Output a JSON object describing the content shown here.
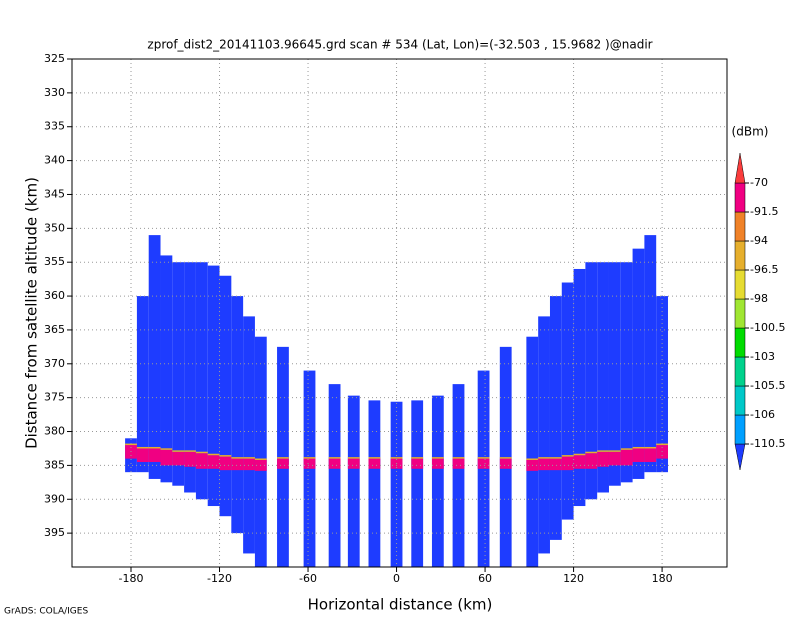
{
  "chart_data": {
    "type": "swath",
    "title": "zprof_dist2_20141103.96645.grd  scan # 534  (Lat, Lon)=(-32.503 , 15.9682 )@nadir",
    "x_label": "Horizontal distance (km)",
    "y_label": "Distance from satellite altitude (km)",
    "credit": "GrADS: COLA/IGES",
    "xlim": [
      -220,
      224
    ],
    "xticks": [
      -180,
      -120,
      -60,
      0,
      60,
      120,
      180
    ],
    "ylim": [
      325,
      400
    ],
    "y_inverted": true,
    "yticks": [
      325,
      330,
      335,
      340,
      345,
      350,
      355,
      360,
      365,
      370,
      375,
      380,
      385,
      390,
      395
    ],
    "grid": true,
    "echo_dbm": -115,
    "surface_dbm": -80,
    "stripes": {
      "x0": [
        -184,
        -176,
        -168,
        -160,
        -152,
        -144,
        -136,
        -128,
        -120,
        -112,
        -104,
        -96,
        -81,
        -63,
        -46,
        -33,
        -19,
        -4,
        10,
        24,
        38,
        55,
        70,
        88,
        96,
        104,
        112,
        120,
        128,
        136,
        144,
        152,
        160,
        168,
        176
      ],
      "x1": [
        -176,
        -168,
        -160,
        -152,
        -144,
        -136,
        -128,
        -120,
        -112,
        -104,
        -96,
        -88,
        -73,
        -55,
        -38,
        -25,
        -11,
        4,
        18,
        32,
        46,
        63,
        78,
        96,
        104,
        112,
        120,
        128,
        136,
        144,
        152,
        160,
        168,
        176,
        184
      ],
      "top": [
        381,
        360,
        351,
        354,
        355,
        355,
        355,
        355.5,
        357,
        360,
        363,
        366,
        367.5,
        371,
        373,
        374.7,
        375.4,
        375.6,
        375.4,
        374.7,
        373,
        371,
        367.5,
        366,
        363,
        360,
        358,
        356,
        355,
        355,
        355,
        355,
        353,
        351,
        360
      ],
      "bottom": [
        386,
        386,
        387,
        387.5,
        388,
        389,
        390,
        391,
        392.5,
        395,
        398,
        400,
        400,
        400,
        400,
        400,
        400,
        400,
        400,
        400,
        400,
        400,
        400,
        400,
        398,
        396,
        393,
        391,
        390,
        389,
        388,
        387.5,
        387,
        386,
        386
      ],
      "band_top": [
        382,
        382.5,
        382.5,
        382.7,
        383,
        383,
        383.2,
        383.5,
        383.7,
        384,
        384,
        384.2,
        384,
        384,
        384,
        384,
        384,
        384,
        384,
        384,
        384,
        384,
        384,
        384.2,
        384,
        384,
        383.7,
        383.5,
        383.2,
        383,
        383,
        382.7,
        382.5,
        382.5,
        382
      ],
      "band_bottom": [
        384,
        384.5,
        384.5,
        385,
        385,
        385.2,
        385.5,
        385.5,
        385.7,
        385.7,
        385.7,
        385.8,
        385.5,
        385.5,
        385.5,
        385.5,
        385.5,
        385.5,
        385.5,
        385.5,
        385.5,
        385.5,
        385.5,
        385.8,
        385.7,
        385.7,
        385.7,
        385.5,
        385.5,
        385.2,
        385,
        385,
        384.5,
        384.5,
        384
      ]
    },
    "colorbar": {
      "label": "(dBm)",
      "levels": [
        -110.5,
        -106,
        -105.5,
        -103,
        -100.5,
        -98,
        -96.5,
        -94,
        -91.5,
        -70
      ],
      "colors": [
        "#1e3cff",
        "#00a0ff",
        "#00c8c8",
        "#00d28c",
        "#00dc00",
        "#a0e632",
        "#e6dc32",
        "#e6af2d",
        "#f08228",
        "#f00082",
        "#fa3c3c"
      ]
    }
  }
}
